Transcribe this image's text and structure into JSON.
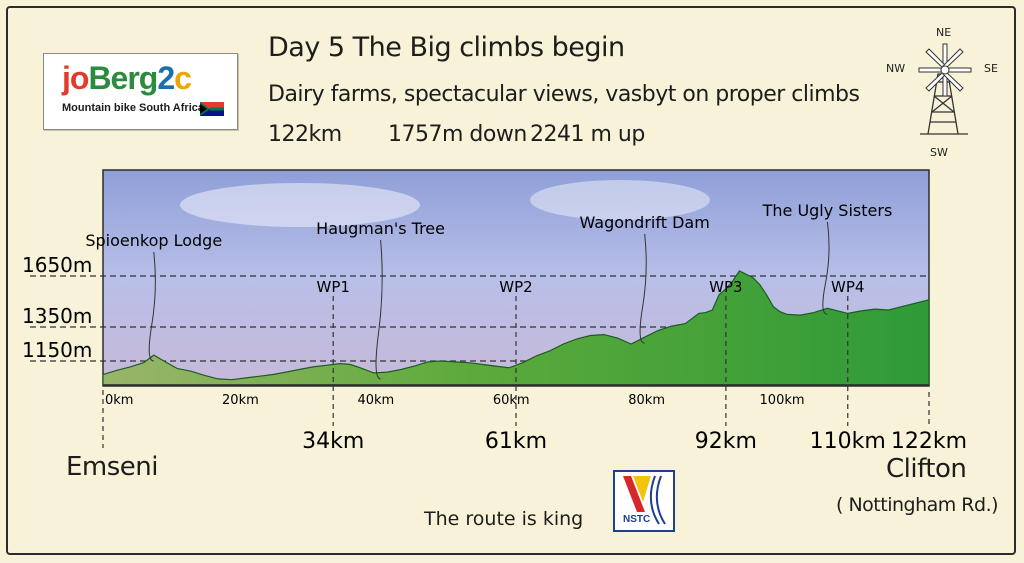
{
  "logo": {
    "text": [
      "jo",
      "Berg",
      "2",
      "c"
    ],
    "subtitle": "Mountain bike South Africa"
  },
  "header": {
    "title": "Day 5  The Big climbs begin",
    "subtitle": "Dairy farms, spectacular views, vasbyt on proper climbs",
    "distance": "122km",
    "down": "1757m down",
    "up": "2241 m up"
  },
  "compass": {
    "ne": "NE",
    "nw": "NW",
    "se": "SE",
    "sw": "SW"
  },
  "chart_data": {
    "type": "area",
    "x_unit": "km",
    "y_unit": "m",
    "xlim": [
      0,
      122
    ],
    "y_ticks": [
      {
        "value": 1150,
        "label": "1150m"
      },
      {
        "value": 1350,
        "label": "1350m"
      },
      {
        "value": 1650,
        "label": "1650m"
      }
    ],
    "x_ticks": [
      {
        "value": 0,
        "label": "0km"
      },
      {
        "value": 20,
        "label": "20km"
      },
      {
        "value": 40,
        "label": "40km"
      },
      {
        "value": 60,
        "label": "60km"
      },
      {
        "value": 80,
        "label": "80km"
      },
      {
        "value": 100,
        "label": "100km"
      }
    ],
    "waypoints": [
      {
        "x": 34,
        "label": "WP1",
        "km_label": "34km"
      },
      {
        "x": 61,
        "label": "WP2",
        "km_label": "61km"
      },
      {
        "x": 92,
        "label": "WP3",
        "km_label": "92km"
      },
      {
        "x": 110,
        "label": "WP4",
        "km_label": "110km"
      },
      {
        "x": 122,
        "label": "",
        "km_label": "122km"
      }
    ],
    "landmarks": [
      {
        "x": 7.5,
        "label": "Spioenkop Lodge"
      },
      {
        "x": 41,
        "label": "Haugman's Tree"
      },
      {
        "x": 80,
        "label": "Wagondrift Dam"
      },
      {
        "x": 107,
        "label": "The Ugly Sisters"
      }
    ],
    "elevation": [
      [
        0,
        1070
      ],
      [
        2,
        1095
      ],
      [
        4,
        1115
      ],
      [
        6,
        1140
      ],
      [
        7.5,
        1185
      ],
      [
        9,
        1150
      ],
      [
        11,
        1105
      ],
      [
        13,
        1090
      ],
      [
        15,
        1065
      ],
      [
        17,
        1045
      ],
      [
        19,
        1040
      ],
      [
        21,
        1050
      ],
      [
        23,
        1060
      ],
      [
        25,
        1070
      ],
      [
        27,
        1085
      ],
      [
        29,
        1100
      ],
      [
        31,
        1115
      ],
      [
        33,
        1125
      ],
      [
        35,
        1135
      ],
      [
        36.5,
        1130
      ],
      [
        38,
        1110
      ],
      [
        40,
        1080
      ],
      [
        42,
        1085
      ],
      [
        44,
        1100
      ],
      [
        46,
        1120
      ],
      [
        48,
        1145
      ],
      [
        50,
        1150
      ],
      [
        52,
        1145
      ],
      [
        54,
        1140
      ],
      [
        56,
        1130
      ],
      [
        58,
        1120
      ],
      [
        60,
        1110
      ],
      [
        62,
        1140
      ],
      [
        64,
        1180
      ],
      [
        66,
        1210
      ],
      [
        68,
        1250
      ],
      [
        70,
        1280
      ],
      [
        72,
        1300
      ],
      [
        74,
        1305
      ],
      [
        76,
        1285
      ],
      [
        78,
        1250
      ],
      [
        80,
        1290
      ],
      [
        82,
        1330
      ],
      [
        84,
        1355
      ],
      [
        86,
        1370
      ],
      [
        88,
        1430
      ],
      [
        89,
        1435
      ],
      [
        90,
        1450
      ],
      [
        91,
        1540
      ],
      [
        92,
        1575
      ],
      [
        93,
        1620
      ],
      [
        94,
        1680
      ],
      [
        95,
        1660
      ],
      [
        96,
        1640
      ],
      [
        97,
        1600
      ],
      [
        98,
        1540
      ],
      [
        99,
        1470
      ],
      [
        100,
        1440
      ],
      [
        101,
        1425
      ],
      [
        103,
        1420
      ],
      [
        105,
        1435
      ],
      [
        107,
        1460
      ],
      [
        109,
        1440
      ],
      [
        110,
        1430
      ],
      [
        112,
        1445
      ],
      [
        114,
        1455
      ],
      [
        116,
        1450
      ],
      [
        118,
        1470
      ],
      [
        120,
        1490
      ],
      [
        122,
        1510
      ]
    ]
  },
  "captions": {
    "start": "Emseni",
    "end": "Clifton",
    "end_sub": "( Nottingham Rd.)",
    "tagline": "The route is king",
    "badge": "NSTC"
  }
}
